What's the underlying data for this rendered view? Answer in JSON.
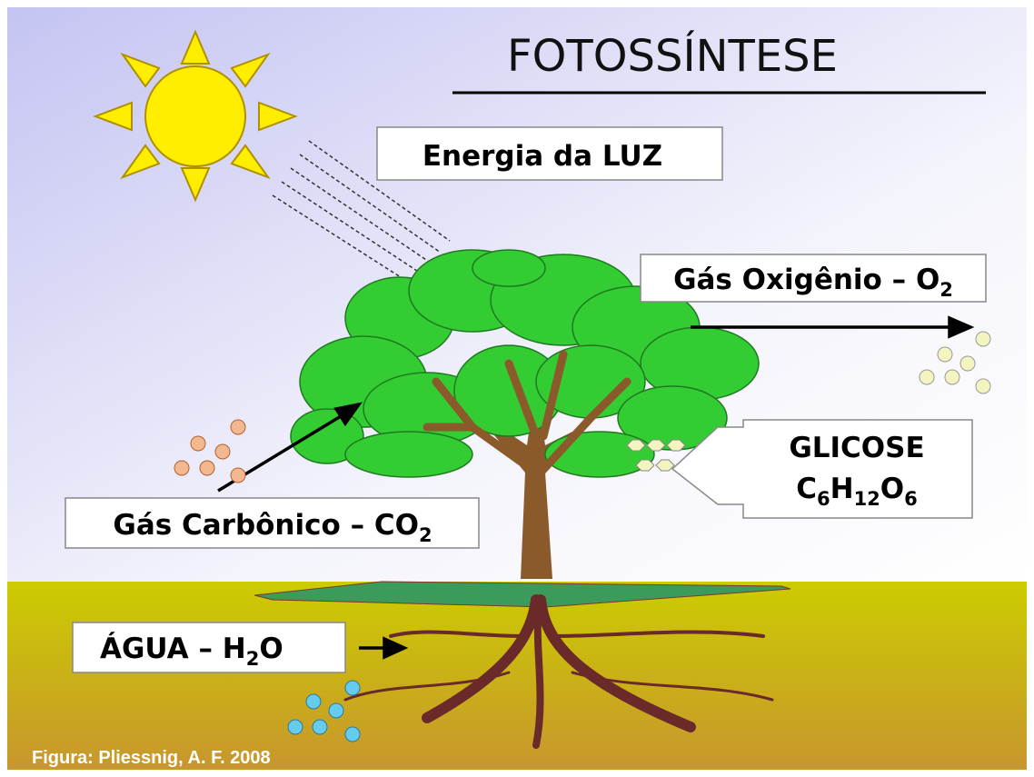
{
  "title": "FOTOSSÍNTESE",
  "labels": {
    "light": "Energia da LUZ",
    "oxygen": [
      "Gás Oxigênio – O",
      "2"
    ],
    "glucose_name": "GLICOSE",
    "glucose_formula": [
      "C",
      "6",
      "H",
      "12",
      "O",
      "6"
    ],
    "carbon": [
      "Gás Carbônico – CO",
      "2"
    ],
    "water": [
      "ÁGUA – H",
      "2",
      "O"
    ]
  },
  "credit": "Figura: Pliessnig, A. F. 2008"
}
